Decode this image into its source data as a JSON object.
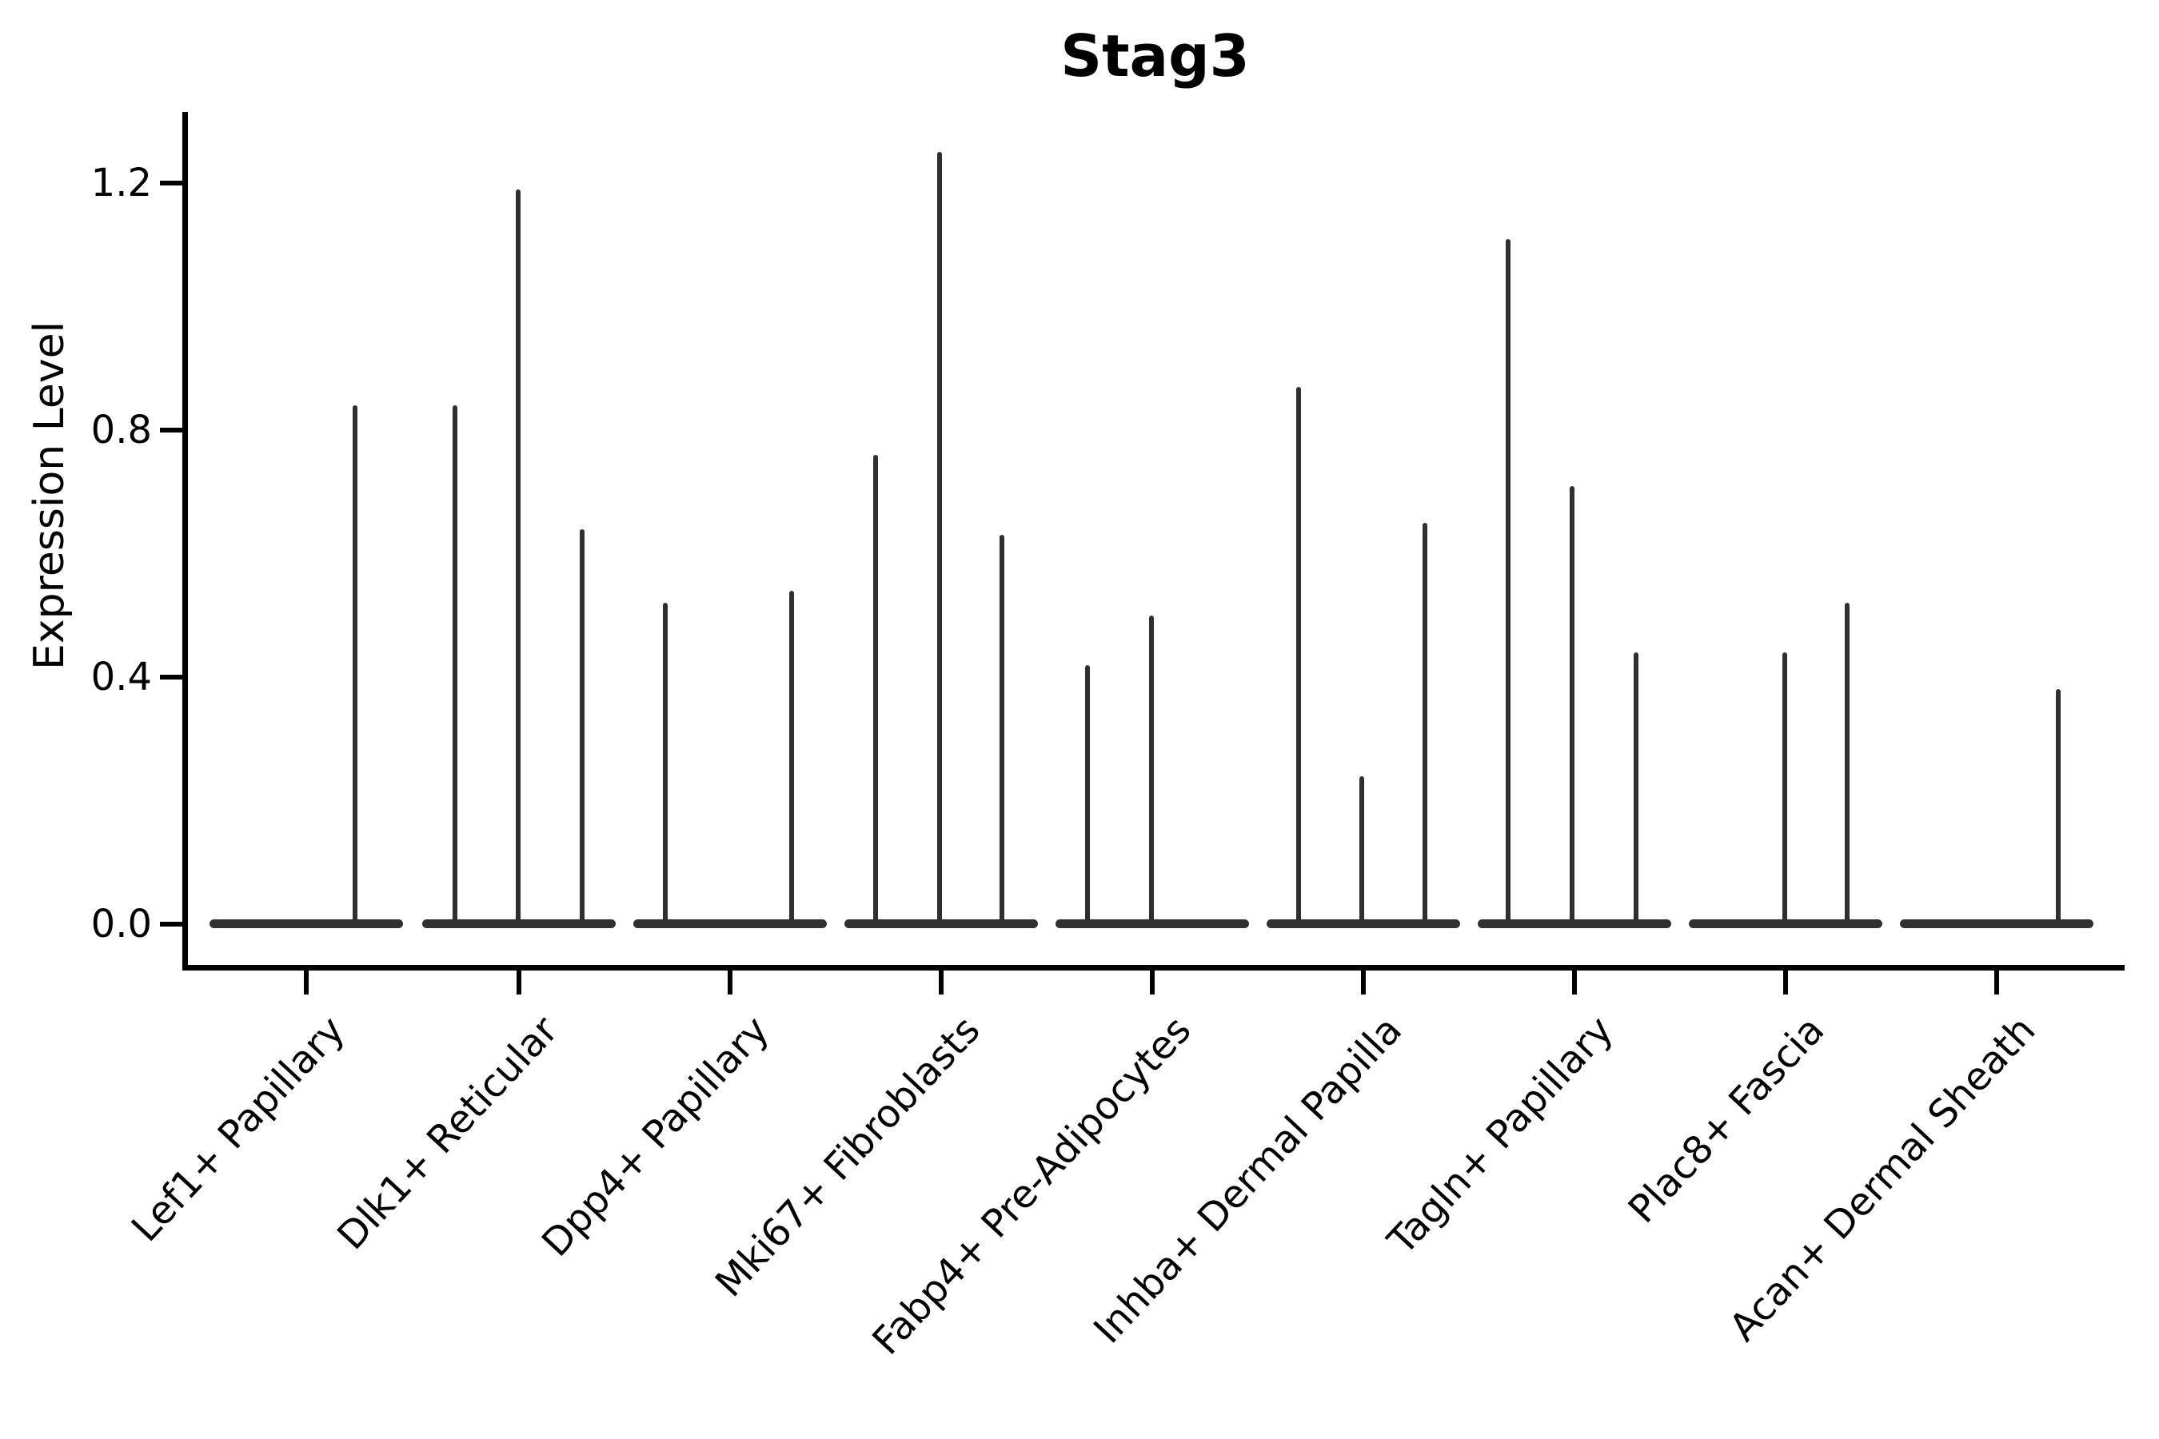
{
  "figure": {
    "title": "Stag3",
    "ylabel": "Expression Level"
  },
  "chart_data": {
    "type": "violin",
    "title": "Stag3",
    "xlabel": "",
    "ylabel": "Expression Level",
    "ytick_labels": [
      "0.0",
      "0.4",
      "0.8",
      "1.2"
    ],
    "ytick_values": [
      0.0,
      0.4,
      0.8,
      1.2
    ],
    "ylim": [
      -0.07,
      1.33
    ],
    "grid": false,
    "legend": false,
    "violin_color": "#303030",
    "categories": [
      "Lef1+ Papillary",
      "Dlk1+ Reticular",
      "Dpp4+ Papillary",
      "Mki67+ Fibroblasts",
      "Fabp4+ Pre-Adipocytes",
      "Inhba+ Dermal Papilla",
      "Tagln+ Papillary",
      "Plac8+ Fascia",
      "Acan+ Dermal Sheath"
    ],
    "groups": [
      {
        "tick_x": 383,
        "violins": [
          {
            "dx": -81,
            "max": 0
          },
          {
            "dx": 0,
            "max": 0
          },
          {
            "dx": 61,
            "max": 0.84
          }
        ]
      },
      {
        "tick_x": 649,
        "violins": [
          {
            "dx": -80,
            "max": 0.84
          },
          {
            "dx": -1,
            "max": 1.19
          },
          {
            "dx": 79,
            "max": 0.64
          }
        ]
      },
      {
        "tick_x": 913,
        "violins": [
          {
            "dx": -81,
            "max": 0.52
          },
          {
            "dx": 0,
            "max": 0
          },
          {
            "dx": 77,
            "max": 0.54
          }
        ]
      },
      {
        "tick_x": 1177,
        "violins": [
          {
            "dx": -82,
            "max": 0.76
          },
          {
            "dx": -2,
            "max": 1.25
          },
          {
            "dx": 76,
            "max": 0.63
          }
        ]
      },
      {
        "tick_x": 1441,
        "violins": [
          {
            "dx": -81,
            "max": 0.42
          },
          {
            "dx": -1,
            "max": 0.5
          },
          {
            "dx": 79,
            "max": 0
          }
        ]
      },
      {
        "tick_x": 1705,
        "violins": [
          {
            "dx": -81,
            "max": 0.87
          },
          {
            "dx": -2,
            "max": 0.24
          },
          {
            "dx": 77,
            "max": 0.65
          }
        ]
      },
      {
        "tick_x": 1969,
        "violins": [
          {
            "dx": -83,
            "max": 1.11
          },
          {
            "dx": -3,
            "max": 0.71
          },
          {
            "dx": 77,
            "max": 0.44
          }
        ]
      },
      {
        "tick_x": 2233,
        "violins": [
          {
            "dx": -81,
            "max": 0
          },
          {
            "dx": -1,
            "max": 0.44
          },
          {
            "dx": 77,
            "max": 0.52
          }
        ]
      },
      {
        "tick_x": 2497,
        "violins": [
          {
            "dx": -81,
            "max": 0
          },
          {
            "dx": -1,
            "max": 0
          },
          {
            "dx": 77,
            "max": 0.38
          }
        ]
      }
    ]
  }
}
